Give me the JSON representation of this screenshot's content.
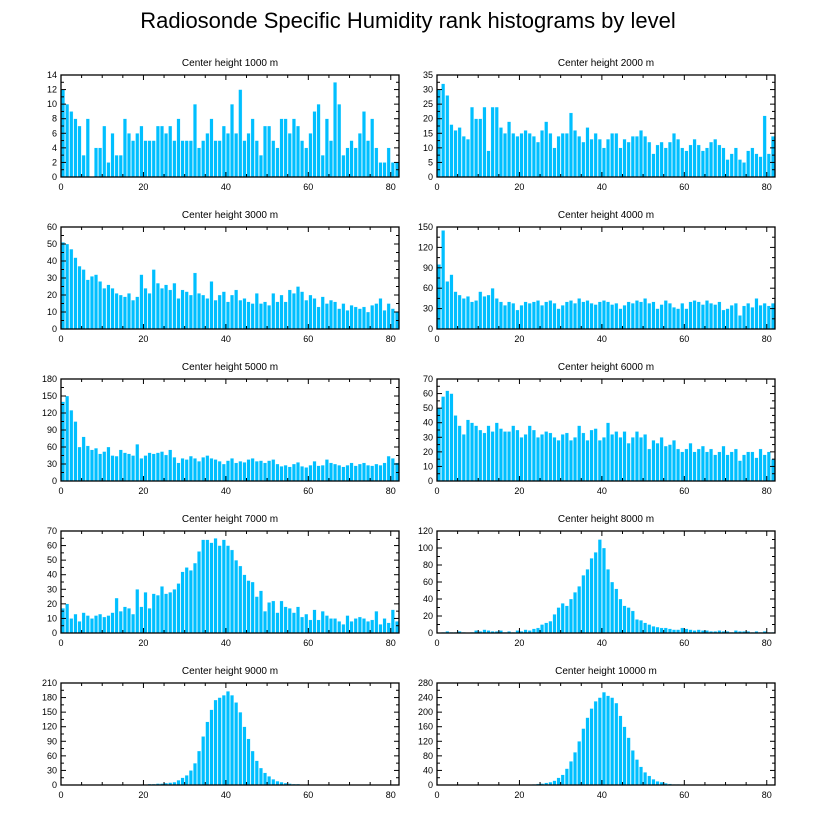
{
  "title": "Radiosonde Specific Humidity rank histograms by level",
  "colors": {
    "bar": "#00bfff",
    "bar_edge": "#ffffff",
    "axis": "#000000"
  },
  "chart_data": [
    {
      "type": "bar",
      "title": "Center height 1000 m",
      "xlim": [
        0,
        82
      ],
      "ylim": [
        0,
        14
      ],
      "xticks": [
        "0",
        "20",
        "40",
        "60",
        "80"
      ],
      "yticks": [
        "0",
        "2",
        "4",
        "6",
        "8",
        "10",
        "12",
        "14"
      ],
      "values": [
        12,
        10,
        9,
        8,
        7,
        3,
        8,
        0,
        4,
        4,
        7,
        2,
        6,
        3,
        3,
        8,
        6,
        5,
        6,
        7,
        5,
        5,
        5,
        7,
        7,
        6,
        7,
        5,
        8,
        5,
        5,
        5,
        10,
        4,
        5,
        6,
        8,
        5,
        5,
        7,
        6,
        10,
        6,
        12,
        5,
        6,
        8,
        5,
        3,
        7,
        7,
        5,
        4,
        8,
        8,
        6,
        8,
        7,
        5,
        4,
        6,
        9,
        10,
        3,
        8,
        5,
        13,
        10,
        3,
        4,
        5,
        4,
        6,
        9,
        5,
        8,
        4,
        2,
        2,
        4,
        2,
        2
      ]
    },
    {
      "type": "bar",
      "title": "Center height 2000 m",
      "xlim": [
        0,
        82
      ],
      "ylim": [
        0,
        35
      ],
      "xticks": [
        "0",
        "20",
        "40",
        "60",
        "80"
      ],
      "yticks": [
        "0",
        "5",
        "10",
        "15",
        "20",
        "25",
        "30",
        "35"
      ],
      "values": [
        30,
        32,
        28,
        18,
        16,
        17,
        14,
        13,
        24,
        20,
        20,
        24,
        9,
        24,
        24,
        17,
        15,
        19,
        15,
        14,
        15,
        16,
        15,
        14,
        12,
        16,
        19,
        15,
        10,
        14,
        15,
        15,
        22,
        16,
        14,
        12,
        17,
        13,
        15,
        13,
        10,
        13,
        15,
        15,
        10,
        13,
        12,
        14,
        14,
        16,
        14,
        12,
        8,
        11,
        12,
        10,
        12,
        15,
        13,
        10,
        9,
        11,
        13,
        11,
        9,
        10,
        12,
        13,
        11,
        10,
        6,
        8,
        10,
        6,
        5,
        9,
        10,
        8,
        7,
        21,
        8,
        14
      ]
    },
    {
      "type": "bar",
      "title": "Center height 3000 m",
      "xlim": [
        0,
        82
      ],
      "ylim": [
        0,
        60
      ],
      "xticks": [
        "0",
        "20",
        "40",
        "60",
        "80"
      ],
      "yticks": [
        "0",
        "10",
        "20",
        "30",
        "40",
        "50",
        "60"
      ],
      "values": [
        51,
        50,
        47,
        42,
        37,
        35,
        29,
        31,
        32,
        28,
        24,
        26,
        24,
        21,
        20,
        19,
        21,
        17,
        19,
        32,
        24,
        21,
        35,
        27,
        24,
        26,
        23,
        27,
        18,
        23,
        22,
        20,
        33,
        21,
        20,
        18,
        28,
        17,
        20,
        22,
        16,
        20,
        23,
        17,
        18,
        16,
        15,
        21,
        15,
        16,
        14,
        21,
        16,
        20,
        16,
        23,
        21,
        25,
        22,
        17,
        20,
        18,
        13,
        19,
        15,
        17,
        16,
        12,
        15,
        11,
        14,
        13,
        12,
        13,
        10,
        14,
        15,
        18,
        11,
        15,
        12,
        10
      ]
    },
    {
      "type": "bar",
      "title": "Center height 4000 m",
      "xlim": [
        0,
        82
      ],
      "ylim": [
        0,
        150
      ],
      "xticks": [
        "0",
        "20",
        "40",
        "60",
        "80"
      ],
      "yticks": [
        "0",
        "30",
        "60",
        "90",
        "120",
        "150"
      ],
      "values": [
        95,
        145,
        70,
        80,
        55,
        50,
        45,
        48,
        40,
        42,
        55,
        48,
        50,
        60,
        45,
        40,
        35,
        40,
        38,
        28,
        35,
        40,
        38,
        40,
        42,
        35,
        40,
        42,
        38,
        30,
        35,
        40,
        42,
        38,
        45,
        40,
        42,
        38,
        36,
        40,
        42,
        40,
        36,
        38,
        30,
        35,
        40,
        38,
        42,
        40,
        45,
        38,
        40,
        30,
        36,
        42,
        38,
        32,
        30,
        38,
        30,
        40,
        42,
        40,
        36,
        42,
        38,
        36,
        40,
        28,
        30,
        35,
        38,
        20,
        34,
        38,
        32,
        45,
        35,
        38,
        34,
        38
      ]
    },
    {
      "type": "bar",
      "title": "Center height 5000 m",
      "xlim": [
        0,
        82
      ],
      "ylim": [
        0,
        180
      ],
      "xticks": [
        "0",
        "20",
        "40",
        "60",
        "80"
      ],
      "yticks": [
        "0",
        "30",
        "60",
        "90",
        "120",
        "150",
        "180"
      ],
      "values": [
        140,
        150,
        125,
        105,
        60,
        78,
        62,
        55,
        58,
        48,
        52,
        60,
        45,
        44,
        55,
        50,
        48,
        45,
        65,
        40,
        45,
        50,
        48,
        50,
        52,
        46,
        55,
        42,
        32,
        40,
        38,
        44,
        40,
        35,
        42,
        45,
        40,
        38,
        35,
        30,
        36,
        40,
        32,
        35,
        33,
        38,
        40,
        35,
        36,
        32,
        36,
        38,
        30,
        26,
        28,
        25,
        30,
        33,
        26,
        24,
        28,
        35,
        27,
        28,
        38,
        32,
        30,
        28,
        25,
        28,
        32,
        27,
        30,
        32,
        28,
        27,
        30,
        28,
        32,
        44,
        40,
        32
      ]
    },
    {
      "type": "bar",
      "title": "Center height 6000 m",
      "xlim": [
        0,
        82
      ],
      "ylim": [
        0,
        70
      ],
      "xticks": [
        "0",
        "20",
        "40",
        "60",
        "80"
      ],
      "yticks": [
        "0",
        "10",
        "20",
        "30",
        "40",
        "50",
        "60",
        "70"
      ],
      "values": [
        50,
        58,
        62,
        60,
        45,
        38,
        32,
        42,
        40,
        38,
        35,
        33,
        38,
        34,
        40,
        36,
        34,
        34,
        38,
        35,
        30,
        32,
        38,
        35,
        30,
        32,
        34,
        33,
        30,
        28,
        32,
        33,
        28,
        30,
        38,
        33,
        28,
        35,
        36,
        28,
        30,
        40,
        32,
        34,
        30,
        34,
        26,
        30,
        34,
        30,
        32,
        22,
        28,
        26,
        30,
        24,
        25,
        28,
        22,
        20,
        22,
        26,
        20,
        22,
        24,
        20,
        22,
        18,
        20,
        24,
        18,
        20,
        22,
        14,
        18,
        20,
        20,
        16,
        22,
        18,
        20,
        15
      ]
    },
    {
      "type": "bar",
      "title": "Center height 7000 m",
      "xlim": [
        0,
        82
      ],
      "ylim": [
        0,
        70
      ],
      "xticks": [
        "0",
        "20",
        "40",
        "60",
        "80"
      ],
      "yticks": [
        "0",
        "10",
        "20",
        "30",
        "40",
        "50",
        "60",
        "70"
      ],
      "values": [
        17,
        20,
        10,
        13,
        8,
        14,
        12,
        10,
        12,
        13,
        11,
        12,
        14,
        24,
        15,
        18,
        17,
        13,
        30,
        18,
        28,
        17,
        27,
        26,
        32,
        27,
        28,
        30,
        34,
        42,
        45,
        43,
        48,
        56,
        64,
        64,
        62,
        65,
        60,
        64,
        60,
        57,
        50,
        46,
        40,
        36,
        35,
        25,
        29,
        15,
        21,
        22,
        14,
        22,
        18,
        17,
        14,
        18,
        11,
        13,
        9,
        16,
        9,
        15,
        12,
        10,
        10,
        8,
        6,
        12,
        8,
        10,
        11,
        10,
        8,
        9,
        15,
        6,
        10,
        7,
        16,
        8
      ]
    },
    {
      "type": "bar",
      "title": "Center height 8000 m",
      "xlim": [
        0,
        82
      ],
      "ylim": [
        0,
        120
      ],
      "xticks": [
        "0",
        "20",
        "40",
        "60",
        "80"
      ],
      "yticks": [
        "0",
        "20",
        "40",
        "60",
        "80",
        "100",
        "120"
      ],
      "values": [
        0,
        1,
        2,
        1,
        1,
        2,
        1,
        0,
        1,
        3,
        2,
        4,
        3,
        2,
        2,
        3,
        1,
        2,
        1,
        3,
        2,
        4,
        3,
        5,
        6,
        10,
        12,
        14,
        22,
        30,
        35,
        32,
        40,
        48,
        55,
        68,
        75,
        88,
        95,
        110,
        100,
        75,
        60,
        52,
        40,
        32,
        30,
        26,
        16,
        15,
        12,
        10,
        8,
        7,
        6,
        6,
        5,
        4,
        4,
        6,
        5,
        4,
        3,
        4,
        3,
        3,
        2,
        2,
        3,
        2,
        2,
        1,
        3,
        2,
        2,
        2,
        1,
        2,
        1,
        2,
        1,
        1
      ]
    },
    {
      "type": "bar",
      "title": "Center height 9000 m",
      "xlim": [
        0,
        82
      ],
      "ylim": [
        0,
        210
      ],
      "xticks": [
        "0",
        "20",
        "40",
        "60",
        "80"
      ],
      "yticks": [
        "0",
        "30",
        "60",
        "90",
        "120",
        "150",
        "180",
        "210"
      ],
      "values": [
        0,
        0,
        0,
        0,
        0,
        0,
        0,
        0,
        0,
        0,
        0,
        0,
        0,
        0,
        0,
        0,
        0,
        0,
        0,
        0,
        1,
        2,
        2,
        3,
        3,
        4,
        5,
        6,
        10,
        15,
        20,
        30,
        45,
        70,
        100,
        130,
        155,
        175,
        180,
        185,
        193,
        185,
        170,
        150,
        120,
        95,
        70,
        50,
        35,
        25,
        18,
        12,
        8,
        6,
        4,
        3,
        2,
        2,
        1,
        1,
        1,
        0,
        0,
        0,
        0,
        0,
        0,
        0,
        0,
        0,
        0,
        0,
        0,
        0,
        0,
        0,
        0,
        0,
        0,
        0,
        0,
        0
      ]
    },
    {
      "type": "bar",
      "title": "Center height 10000 m",
      "xlim": [
        0,
        82
      ],
      "ylim": [
        0,
        280
      ],
      "xticks": [
        "0",
        "20",
        "40",
        "60",
        "80"
      ],
      "yticks": [
        "0",
        "40",
        "80",
        "120",
        "160",
        "200",
        "240",
        "280"
      ],
      "values": [
        0,
        0,
        0,
        0,
        0,
        0,
        0,
        0,
        0,
        0,
        0,
        0,
        0,
        0,
        0,
        0,
        0,
        0,
        0,
        0,
        0,
        1,
        1,
        2,
        3,
        4,
        6,
        8,
        12,
        20,
        28,
        45,
        65,
        90,
        120,
        155,
        185,
        210,
        230,
        240,
        255,
        245,
        240,
        225,
        190,
        160,
        130,
        95,
        70,
        50,
        35,
        25,
        16,
        10,
        8,
        5,
        3,
        2,
        2,
        1,
        1,
        1,
        0,
        0,
        0,
        0,
        0,
        0,
        0,
        0,
        0,
        0,
        0,
        0,
        0,
        0,
        0,
        0,
        0,
        0,
        0,
        0
      ]
    }
  ]
}
